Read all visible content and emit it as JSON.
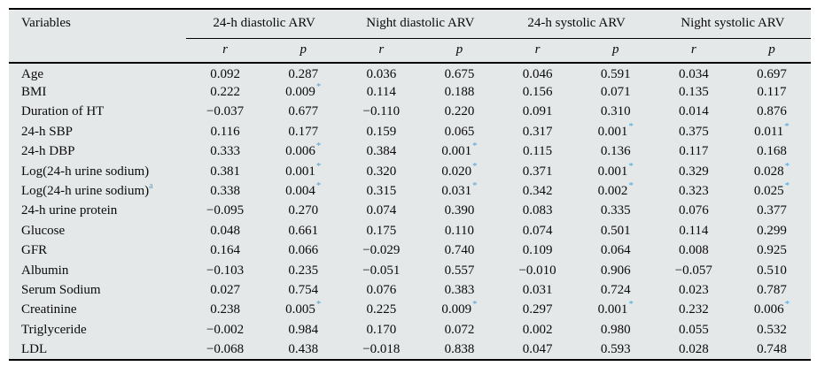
{
  "table": {
    "background_color": "#e4e8e9",
    "rule_color": "#000000",
    "significance_color": "#4ba3d9",
    "significance_marker": "*",
    "variables_header": "Variables",
    "groups": [
      "24-h diastolic ARV",
      "Night diastolic ARV",
      "24-h systolic ARV",
      "Night systolic ARV"
    ],
    "subheader_row": [
      "r",
      "p",
      "r",
      "p",
      "r",
      "p",
      "r",
      "p"
    ],
    "rows": [
      {
        "variable": "Age",
        "variable_sup": "",
        "values": [
          {
            "v": "0.092"
          },
          {
            "v": "0.287"
          },
          {
            "v": "0.036"
          },
          {
            "v": "0.675"
          },
          {
            "v": "0.046"
          },
          {
            "v": "0.591"
          },
          {
            "v": "0.034"
          },
          {
            "v": "0.697"
          }
        ]
      },
      {
        "variable": "BMI",
        "variable_sup": "",
        "values": [
          {
            "v": "0.222"
          },
          {
            "v": "0.009",
            "sig": true
          },
          {
            "v": "0.114"
          },
          {
            "v": "0.188"
          },
          {
            "v": "0.156"
          },
          {
            "v": "0.071"
          },
          {
            "v": "0.135"
          },
          {
            "v": "0.117"
          }
        ]
      },
      {
        "variable": "Duration of HT",
        "variable_sup": "",
        "values": [
          {
            "v": "−0.037"
          },
          {
            "v": "0.677"
          },
          {
            "v": "−0.110"
          },
          {
            "v": "0.220"
          },
          {
            "v": "0.091"
          },
          {
            "v": "0.310"
          },
          {
            "v": "0.014"
          },
          {
            "v": "0.876"
          }
        ]
      },
      {
        "variable": "24-h SBP",
        "variable_sup": "",
        "values": [
          {
            "v": "0.116"
          },
          {
            "v": "0.177"
          },
          {
            "v": "0.159"
          },
          {
            "v": "0.065"
          },
          {
            "v": "0.317"
          },
          {
            "v": "0.001",
            "sig": true
          },
          {
            "v": "0.375"
          },
          {
            "v": "0.011",
            "sig": true
          }
        ]
      },
      {
        "variable": "24-h DBP",
        "variable_sup": "",
        "values": [
          {
            "v": "0.333"
          },
          {
            "v": "0.006",
            "sig": true
          },
          {
            "v": "0.384"
          },
          {
            "v": "0.001",
            "sig": true
          },
          {
            "v": "0.115"
          },
          {
            "v": "0.136"
          },
          {
            "v": "0.117"
          },
          {
            "v": "0.168"
          }
        ]
      },
      {
        "variable": "Log(24-h urine sodium)",
        "variable_sup": "",
        "values": [
          {
            "v": "0.381"
          },
          {
            "v": "0.001",
            "sig": true
          },
          {
            "v": "0.320"
          },
          {
            "v": "0.020",
            "sig": true
          },
          {
            "v": "0.371"
          },
          {
            "v": "0.001",
            "sig": true
          },
          {
            "v": "0.329"
          },
          {
            "v": "0.028",
            "sig": true
          }
        ]
      },
      {
        "variable": "Log(24-h urine sodium)",
        "variable_sup": "a",
        "values": [
          {
            "v": "0.338"
          },
          {
            "v": "0.004",
            "sig": true
          },
          {
            "v": "0.315"
          },
          {
            "v": "0.031",
            "sig": true
          },
          {
            "v": "0.342"
          },
          {
            "v": "0.002",
            "sig": true
          },
          {
            "v": "0.323"
          },
          {
            "v": "0.025",
            "sig": true
          }
        ]
      },
      {
        "variable": "24-h urine protein",
        "variable_sup": "",
        "values": [
          {
            "v": "−0.095"
          },
          {
            "v": "0.270"
          },
          {
            "v": "0.074"
          },
          {
            "v": "0.390"
          },
          {
            "v": "0.083"
          },
          {
            "v": "0.335"
          },
          {
            "v": "0.076"
          },
          {
            "v": "0.377"
          }
        ]
      },
      {
        "variable": "Glucose",
        "variable_sup": "",
        "values": [
          {
            "v": "0.048"
          },
          {
            "v": "0.661"
          },
          {
            "v": "0.175"
          },
          {
            "v": "0.110"
          },
          {
            "v": "0.074"
          },
          {
            "v": "0.501"
          },
          {
            "v": "0.114"
          },
          {
            "v": "0.299"
          }
        ]
      },
      {
        "variable": "GFR",
        "variable_sup": "",
        "values": [
          {
            "v": "0.164"
          },
          {
            "v": "0.066"
          },
          {
            "v": "−0.029"
          },
          {
            "v": "0.740"
          },
          {
            "v": "0.109"
          },
          {
            "v": "0.064"
          },
          {
            "v": "0.008"
          },
          {
            "v": "0.925"
          }
        ]
      },
      {
        "variable": "Albumin",
        "variable_sup": "",
        "values": [
          {
            "v": "−0.103"
          },
          {
            "v": "0.235"
          },
          {
            "v": "−0.051"
          },
          {
            "v": "0.557"
          },
          {
            "v": "−0.010"
          },
          {
            "v": "0.906"
          },
          {
            "v": "−0.057"
          },
          {
            "v": "0.510"
          }
        ]
      },
      {
        "variable": "Serum Sodium",
        "variable_sup": "",
        "values": [
          {
            "v": "0.027"
          },
          {
            "v": "0.754"
          },
          {
            "v": "0.076"
          },
          {
            "v": "0.383"
          },
          {
            "v": "0.031"
          },
          {
            "v": "0.724"
          },
          {
            "v": "0.023"
          },
          {
            "v": "0.787"
          }
        ]
      },
      {
        "variable": "Creatinine",
        "variable_sup": "",
        "values": [
          {
            "v": "0.238"
          },
          {
            "v": "0.005",
            "sig": true
          },
          {
            "v": "0.225"
          },
          {
            "v": "0.009",
            "sig": true
          },
          {
            "v": "0.297"
          },
          {
            "v": "0.001",
            "sig": true
          },
          {
            "v": "0.232"
          },
          {
            "v": "0.006",
            "sig": true
          }
        ]
      },
      {
        "variable": "Triglyceride",
        "variable_sup": "",
        "values": [
          {
            "v": "−0.002"
          },
          {
            "v": "0.984"
          },
          {
            "v": "0.170"
          },
          {
            "v": "0.072"
          },
          {
            "v": "0.002"
          },
          {
            "v": "0.980"
          },
          {
            "v": "0.055"
          },
          {
            "v": "0.532"
          }
        ]
      },
      {
        "variable": "LDL",
        "variable_sup": "",
        "values": [
          {
            "v": "−0.068"
          },
          {
            "v": "0.438"
          },
          {
            "v": "−0.018"
          },
          {
            "v": "0.838"
          },
          {
            "v": "0.047"
          },
          {
            "v": "0.593"
          },
          {
            "v": "0.028"
          },
          {
            "v": "0.748"
          }
        ]
      }
    ]
  }
}
